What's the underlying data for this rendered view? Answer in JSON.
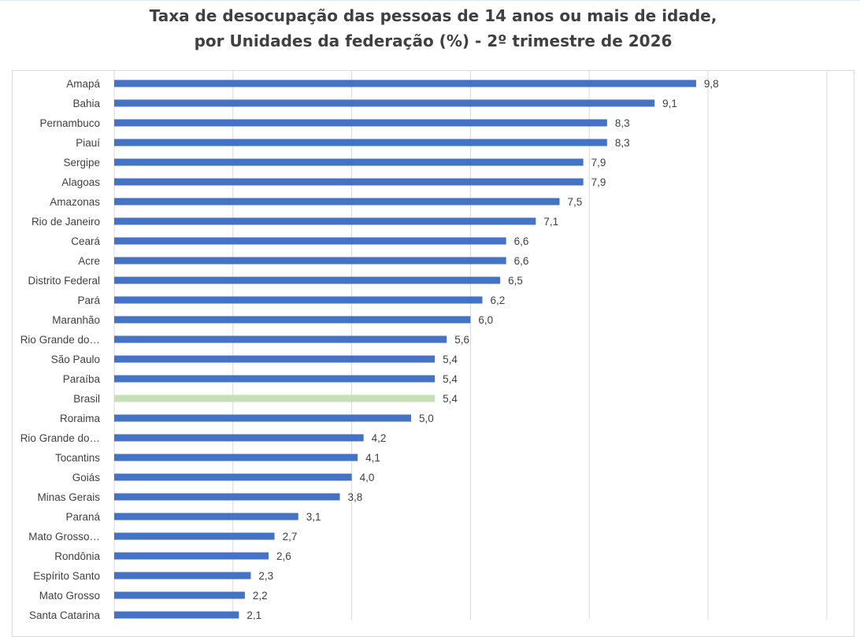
{
  "title": {
    "line1": "Taxa de desocupação das pessoas de 14 anos ou mais de idade,",
    "line2": "por Unidades da federação (%) - 2º trimestre de 2026"
  },
  "colors": {
    "bar": "#4472c4",
    "highlight_bar": "#c5e0b4",
    "grid": "#d9d9d9",
    "text": "#404040"
  },
  "chart_data": {
    "type": "bar",
    "orientation": "horizontal",
    "title": "Taxa de desocupação das pessoas de 14 anos ou mais de idade, por Unidades da federação (%) - 2º trimestre de 2026",
    "xlim": [
      0,
      12
    ],
    "grid": true,
    "highlight": "Brasil",
    "categories": [
      "Amapá",
      "Bahia",
      "Pernambuco",
      "Piauí",
      "Sergipe",
      "Alagoas",
      "Amazonas",
      "Rio de Janeiro",
      "Ceará",
      "Acre",
      "Distrito Federal",
      "Pará",
      "Maranhão",
      "Rio Grande do…",
      "São Paulo",
      "Paraíba",
      "Brasil",
      "Roraima",
      "Rio Grande do…",
      "Tocantins",
      "Goiás",
      "Minas Gerais",
      "Paraná",
      "Mato Grosso…",
      "Rondônia",
      "Espírito Santo",
      "Mato Grosso",
      "Santa Catarina"
    ],
    "values": [
      9.8,
      9.1,
      8.3,
      8.3,
      7.9,
      7.9,
      7.5,
      7.1,
      6.6,
      6.6,
      6.5,
      6.2,
      6.0,
      5.6,
      5.4,
      5.4,
      5.4,
      5.0,
      4.2,
      4.1,
      4.0,
      3.8,
      3.1,
      2.7,
      2.6,
      2.3,
      2.2,
      2.1
    ],
    "value_labels": [
      "9,8",
      "9,1",
      "8,3",
      "8,3",
      "7,9",
      "7,9",
      "7,5",
      "7,1",
      "6,6",
      "6,6",
      "6,5",
      "6,2",
      "6,0",
      "5,6",
      "5,4",
      "5,4",
      "5,4",
      "5,0",
      "4,2",
      "4,1",
      "4,0",
      "3,8",
      "3,1",
      "2,7",
      "2,6",
      "2,3",
      "2,2",
      "2,1"
    ]
  }
}
